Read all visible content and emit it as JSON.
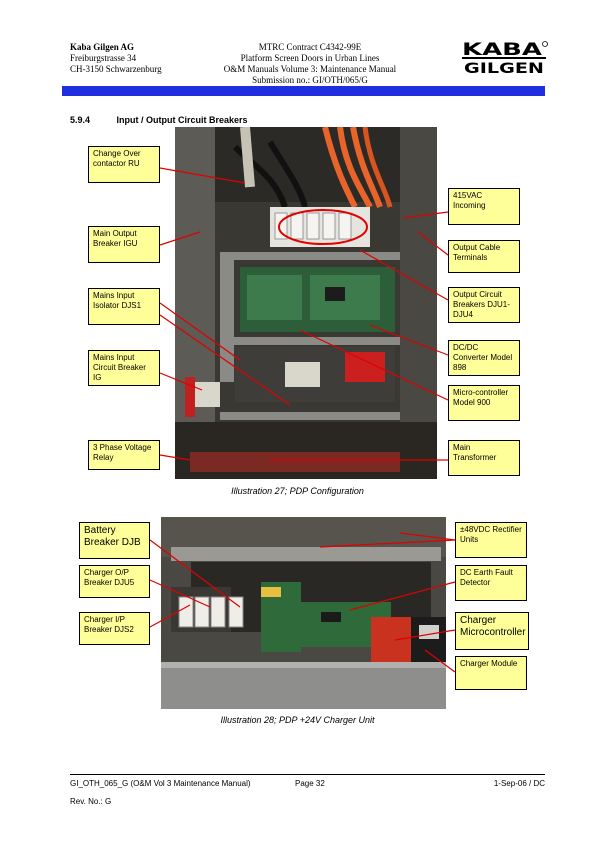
{
  "header": {
    "company": "Kaba Gilgen AG",
    "street": "Freiburgstrasse 34",
    "city": "CH-3150 Schwarzenburg",
    "contract": "MTRC Contract C4342-99E",
    "project": "Platform Screen Doors in Urban Lines",
    "manual": "O&M Manuals Volume 3: Maintenance Manual",
    "submission": "Submission no.: GI/OTH/065/G",
    "logo_top": "KABA",
    "logo_bottom": "GILGEN"
  },
  "section": {
    "number": "5.9.4",
    "title": "Input / Output Circuit Breakers"
  },
  "figure1": {
    "caption": "Illustration 27; PDP Configuration",
    "callouts": [
      "Change Over contactor RU",
      "Main Output Breaker IGU",
      "Mains Input Isolator DJS1",
      "Mains Input Circuit Breaker IG",
      "3 Phase Voltage Relay",
      "415VAC Incoming",
      "Output Cable Terminals",
      "Output Circuit Breakers DJU1-DJU4",
      "DC/DC Converter Model 898",
      "Micro-controller Model 900",
      "Main Transformer"
    ]
  },
  "figure2": {
    "caption": "Illustration 28; PDP +24V Charger Unit",
    "callouts": [
      "Battery Breaker DJB",
      "Charger O/P Breaker DJU5",
      "Charger I/P Breaker DJS2",
      "±48VDC Rectifier Units",
      "DC Earth Fault Detector",
      "Charger Microcontroller",
      "Charger Module"
    ]
  },
  "footer": {
    "doc": "GI_OTH_065_G (O&M Vol 3 Maintenance Manual)",
    "page": "Page 32",
    "date": "1-Sep-06 / DC",
    "rev": "Rev. No.: G"
  },
  "colors": {
    "header_bar": "#1f2fe0",
    "callout_fill": "#ffff99",
    "leader_line": "#e00000"
  }
}
